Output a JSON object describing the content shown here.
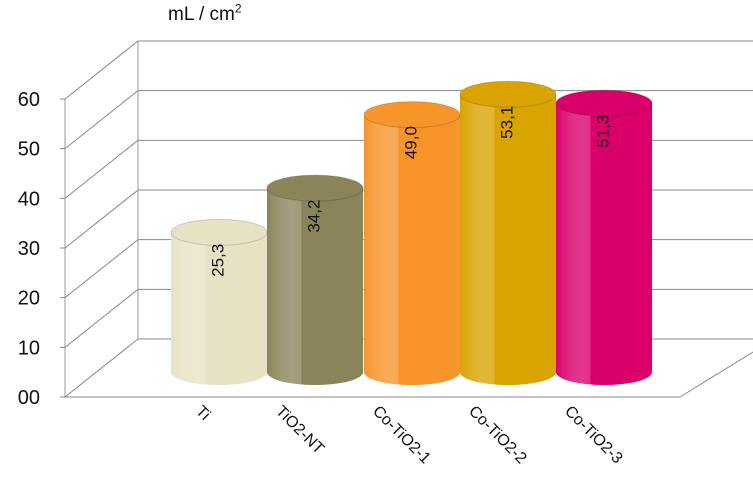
{
  "chart_data": {
    "type": "bar",
    "style": "3d-cylinder",
    "unit_label": "mL / cm",
    "unit_superscript": "2",
    "categories": [
      "Ti",
      "TiO2-NT",
      "Co-TiO2-1",
      "Co-TiO2-2",
      "Co-TiO2-3"
    ],
    "values": [
      25.3,
      34.2,
      49.0,
      53.1,
      51.3
    ],
    "data_labels": [
      "25,3",
      "34,2",
      "49,0",
      "53,1",
      "51,3"
    ],
    "y_tick_labels": [
      "00",
      "10",
      "20",
      "30",
      "40",
      "50",
      "60"
    ],
    "y_ticks": [
      0,
      10,
      20,
      30,
      40,
      50,
      60
    ],
    "ylim": [
      0,
      60
    ],
    "grid": true,
    "legend": "none",
    "colors": [
      "#e8e2c4",
      "#8a845a",
      "#f7942a",
      "#d9a300",
      "#d9006a"
    ]
  }
}
